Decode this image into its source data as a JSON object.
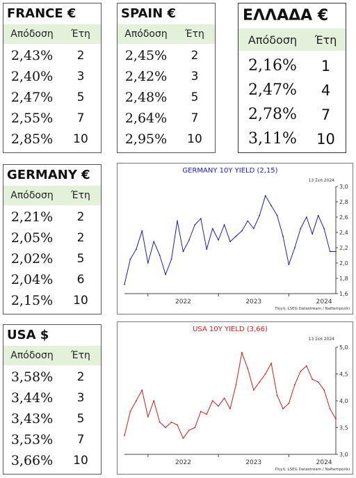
{
  "tables": {
    "france": {
      "title": "FRANCE €",
      "col_yield": "Απόδοση",
      "col_years": "Έτη",
      "rows": [
        {
          "yield": "2,43%",
          "years": "2"
        },
        {
          "yield": "2,40%",
          "years": "3"
        },
        {
          "yield": "2,47%",
          "years": "5"
        },
        {
          "yield": "2,55%",
          "years": "7"
        },
        {
          "yield": "2,85%",
          "years": "10"
        }
      ]
    },
    "spain": {
      "title": "SPAIN €",
      "col_yield": "Απόδοση",
      "col_years": "Έτη",
      "rows": [
        {
          "yield": "2,45%",
          "years": "2"
        },
        {
          "yield": "2,42%",
          "years": "3"
        },
        {
          "yield": "2,48%",
          "years": "5"
        },
        {
          "yield": "2,64%",
          "years": "7"
        },
        {
          "yield": "2,95%",
          "years": "10"
        }
      ]
    },
    "greece": {
      "title": "ΕΛΛΑΔΑ €",
      "col_yield": "Απόδοση",
      "col_years": "Έτη",
      "rows": [
        {
          "yield": "2,16%",
          "years": "1"
        },
        {
          "yield": "2,47%",
          "years": "4"
        },
        {
          "yield": "2,78%",
          "years": "7"
        },
        {
          "yield": "3,11%",
          "years": "10"
        }
      ]
    },
    "germany": {
      "title": "GERMANY €",
      "col_yield": "Απόδοση",
      "col_years": "Έτη",
      "rows": [
        {
          "yield": "2,21%",
          "years": "2"
        },
        {
          "yield": "2,05%",
          "years": "2"
        },
        {
          "yield": "2,02%",
          "years": "5"
        },
        {
          "yield": "2,04%",
          "years": "6"
        },
        {
          "yield": "2,15%",
          "years": "10"
        }
      ]
    },
    "usa": {
      "title": "USA $",
      "col_yield": "Απόδοση",
      "col_years": "Έτη",
      "rows": [
        {
          "yield": "3,58%",
          "years": "2"
        },
        {
          "yield": "3,44%",
          "years": "3"
        },
        {
          "yield": "3,43%",
          "years": "5"
        },
        {
          "yield": "3,53%",
          "years": "7"
        },
        {
          "yield": "3,66%",
          "years": "10"
        }
      ]
    }
  },
  "charts": {
    "germany": {
      "date_label": "13 Σεπ 2024",
      "source": "Πηγή: LSEG Datastream / Naftemporiki"
    },
    "usa": {
      "date_label": "13 Σεπ 2024",
      "source": "Πηγή: LSEG Datastream / Naftemporiki"
    }
  },
  "colors": {
    "germany_line": "#1a1acc",
    "usa_line": "#d91a1a",
    "header_bg": "#e3f0da"
  },
  "chart_data": [
    {
      "type": "line",
      "title": "GERMANY 10Y YIELD  (2,15)",
      "x_tick_labels": [
        "2022",
        "2023",
        "2024"
      ],
      "ylim": [
        1.6,
        3.0
      ],
      "y_ticks": [
        "1,6",
        "1,8",
        "2,0",
        "2,2",
        "2,4",
        "2,6",
        "2,8",
        "3,0"
      ],
      "y_axis_position": "right",
      "grid": false,
      "series": [
        {
          "x": [
            "2021-09",
            "2021-10",
            "2021-11",
            "2021-12",
            "2022-01",
            "2022-02",
            "2022-03",
            "2022-04",
            "2022-05",
            "2022-06",
            "2022-07",
            "2022-08",
            "2022-09",
            "2022-10",
            "2022-11",
            "2022-12",
            "2023-01",
            "2023-02",
            "2023-03",
            "2023-04",
            "2023-05",
            "2023-06",
            "2023-07",
            "2023-08",
            "2023-09",
            "2023-10",
            "2023-11",
            "2023-12",
            "2024-01",
            "2024-02",
            "2024-03",
            "2024-04",
            "2024-05",
            "2024-06",
            "2024-07",
            "2024-08",
            "2024-09"
          ],
          "values": [
            1.72,
            2.05,
            2.18,
            2.42,
            2.0,
            2.28,
            2.1,
            1.85,
            2.05,
            2.55,
            2.15,
            2.3,
            2.5,
            2.58,
            2.18,
            2.45,
            2.3,
            2.5,
            2.28,
            2.35,
            2.42,
            2.55,
            2.45,
            2.62,
            2.88,
            2.75,
            2.62,
            2.35,
            1.98,
            2.2,
            2.45,
            2.6,
            2.38,
            2.62,
            2.45,
            2.15,
            2.15
          ]
        }
      ]
    },
    {
      "type": "line",
      "title": "USA 10Y YIELD  (3,66)",
      "x_tick_labels": [
        "2022",
        "2023",
        "2024"
      ],
      "ylim": [
        3.0,
        5.0
      ],
      "y_ticks": [
        "3,0",
        "3,5",
        "4,0",
        "4,5",
        "5,0"
      ],
      "y_axis_position": "right",
      "grid": false,
      "series": [
        {
          "x": [
            "2021-09",
            "2021-10",
            "2021-11",
            "2021-12",
            "2022-01",
            "2022-02",
            "2022-03",
            "2022-04",
            "2022-05",
            "2022-06",
            "2022-07",
            "2022-08",
            "2022-09",
            "2022-10",
            "2022-11",
            "2022-12",
            "2023-01",
            "2023-02",
            "2023-03",
            "2023-04",
            "2023-05",
            "2023-06",
            "2023-07",
            "2023-08",
            "2023-09",
            "2023-10",
            "2023-11",
            "2023-12",
            "2024-01",
            "2024-02",
            "2024-03",
            "2024-04",
            "2024-05",
            "2024-06",
            "2024-07",
            "2024-08",
            "2024-09"
          ],
          "values": [
            3.35,
            3.8,
            4.0,
            4.2,
            3.7,
            4.0,
            3.6,
            3.5,
            3.6,
            3.55,
            3.3,
            3.45,
            3.5,
            3.8,
            3.75,
            4.0,
            3.9,
            4.05,
            3.85,
            4.3,
            4.9,
            4.6,
            4.2,
            4.35,
            4.5,
            4.7,
            4.1,
            3.85,
            3.95,
            4.3,
            4.55,
            4.65,
            4.4,
            4.35,
            4.2,
            3.85,
            3.66
          ]
        }
      ]
    }
  ]
}
